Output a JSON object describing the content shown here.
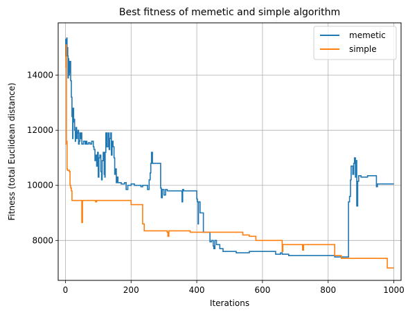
{
  "chart_data": {
    "type": "line",
    "title": "Best fitness of memetic and simple algorithm",
    "xlabel": "Iterations",
    "ylabel": "Fitness (total Euclidean distance)",
    "xlim": [
      -22,
      1022
    ],
    "ylim": [
      6550,
      15900
    ],
    "xticks": [
      0,
      200,
      400,
      600,
      800,
      1000
    ],
    "yticks": [
      8000,
      10000,
      12000,
      14000
    ],
    "grid": true,
    "legend_position": "top-right",
    "series": [
      {
        "name": "memetic",
        "color": "#1f77b4",
        "x": [
          0,
          1,
          2,
          3,
          4,
          5,
          6,
          7,
          8,
          9,
          10,
          12,
          13,
          15,
          16,
          18,
          20,
          22,
          23,
          25,
          26,
          28,
          30,
          31,
          32,
          34,
          36,
          38,
          40,
          42,
          44,
          46,
          48,
          50,
          55,
          60,
          63,
          65,
          70,
          75,
          80,
          85,
          87,
          90,
          92,
          95,
          98,
          100,
          102,
          105,
          108,
          110,
          112,
          115,
          118,
          120,
          121,
          123,
          126,
          130,
          133,
          135,
          138,
          140,
          142,
          145,
          148,
          150,
          152,
          155,
          158,
          160,
          165,
          170,
          175,
          180,
          185,
          190,
          200,
          210,
          220,
          230,
          235,
          240,
          250,
          255,
          258,
          260,
          262,
          265,
          268,
          270,
          280,
          290,
          292,
          295,
          300,
          305,
          310,
          320,
          330,
          350,
          355,
          357,
          360,
          380,
          390,
          398,
          400,
          402,
          404,
          405,
          410,
          420,
          430,
          440,
          445,
          450,
          452,
          455,
          460,
          470,
          480,
          500,
          520,
          560,
          600,
          640,
          655,
          660,
          680,
          700,
          720,
          760,
          780,
          800,
          820,
          830,
          840,
          860,
          862,
          865,
          868,
          870,
          875,
          878,
          880,
          883,
          885,
          887,
          890,
          893,
          900,
          920,
          940,
          945,
          947,
          950,
          960,
          980,
          1000
        ],
        "y": [
          15300,
          14700,
          15300,
          14800,
          15350,
          14700,
          15000,
          14700,
          13900,
          14600,
          14000,
          14500,
          14100,
          14500,
          13800,
          13200,
          12500,
          11700,
          12800,
          12300,
          12400,
          12000,
          11600,
          11900,
          12100,
          11700,
          11900,
          12000,
          11500,
          11600,
          11900,
          11700,
          11900,
          11500,
          11600,
          11500,
          11600,
          11500,
          11550,
          11500,
          11600,
          11400,
          11300,
          10900,
          11100,
          10700,
          11200,
          10300,
          11000,
          11100,
          10500,
          10200,
          10900,
          11200,
          10400,
          10300,
          11200,
          11900,
          11400,
          11900,
          11300,
          11700,
          11900,
          11100,
          11600,
          11400,
          11000,
          10400,
          10600,
          10100,
          10300,
          10100,
          10100,
          10050,
          10050,
          10100,
          9850,
          10000,
          10050,
          10000,
          10000,
          9950,
          10000,
          10000,
          9850,
          10200,
          10450,
          10800,
          11200,
          10800,
          10800,
          10800,
          10800,
          9900,
          9550,
          9850,
          9650,
          9850,
          9800,
          9800,
          9800,
          9800,
          9400,
          9850,
          9800,
          9800,
          9800,
          9800,
          9500,
          9400,
          8600,
          9400,
          9000,
          8300,
          8300,
          7950,
          8000,
          7800,
          7700,
          8000,
          7850,
          7700,
          7600,
          7600,
          7550,
          7600,
          7600,
          7500,
          7550,
          7500,
          7450,
          7450,
          7450,
          7450,
          7450,
          7450,
          7400,
          7400,
          7400,
          7400,
          9400,
          9600,
          10200,
          10700,
          10400,
          10800,
          11000,
          10300,
          10900,
          9250,
          10150,
          10350,
          10300,
          10350,
          10350,
          10350,
          9950,
          10050,
          10050,
          10050,
          10050
        ]
      },
      {
        "name": "simple",
        "color": "#ff7f0e",
        "x": [
          0,
          2,
          3,
          4,
          5,
          6,
          8,
          10,
          12,
          14,
          16,
          18,
          20,
          25,
          30,
          40,
          48,
          50,
          52,
          60,
          80,
          90,
          92,
          95,
          100,
          120,
          140,
          150,
          160,
          180,
          200,
          220,
          230,
          235,
          240,
          250,
          280,
          300,
          310,
          312,
          315,
          340,
          360,
          380,
          400,
          420,
          440,
          460,
          500,
          540,
          560,
          580,
          600,
          620,
          640,
          660,
          662,
          665,
          680,
          700,
          720,
          722,
          725,
          740,
          760,
          780,
          800,
          820,
          840,
          860,
          880,
          900,
          920,
          940,
          960,
          980,
          1000
        ],
        "y": [
          14300,
          15100,
          11500,
          11600,
          10600,
          10550,
          10550,
          10550,
          10500,
          10000,
          9900,
          9800,
          9450,
          9450,
          9450,
          9450,
          9450,
          8650,
          9450,
          9450,
          9450,
          9450,
          9400,
          9450,
          9450,
          9450,
          9450,
          9450,
          9450,
          9450,
          9300,
          9300,
          9300,
          8600,
          8350,
          8350,
          8350,
          8350,
          8300,
          8150,
          8350,
          8350,
          8350,
          8300,
          8300,
          8300,
          8300,
          8300,
          8300,
          8200,
          8150,
          8000,
          8000,
          8000,
          8000,
          7600,
          7850,
          7850,
          7850,
          7850,
          7850,
          7650,
          7850,
          7850,
          7850,
          7850,
          7850,
          7450,
          7350,
          7350,
          7350,
          7350,
          7350,
          7350,
          7350,
          7000,
          7000
        ]
      }
    ]
  }
}
